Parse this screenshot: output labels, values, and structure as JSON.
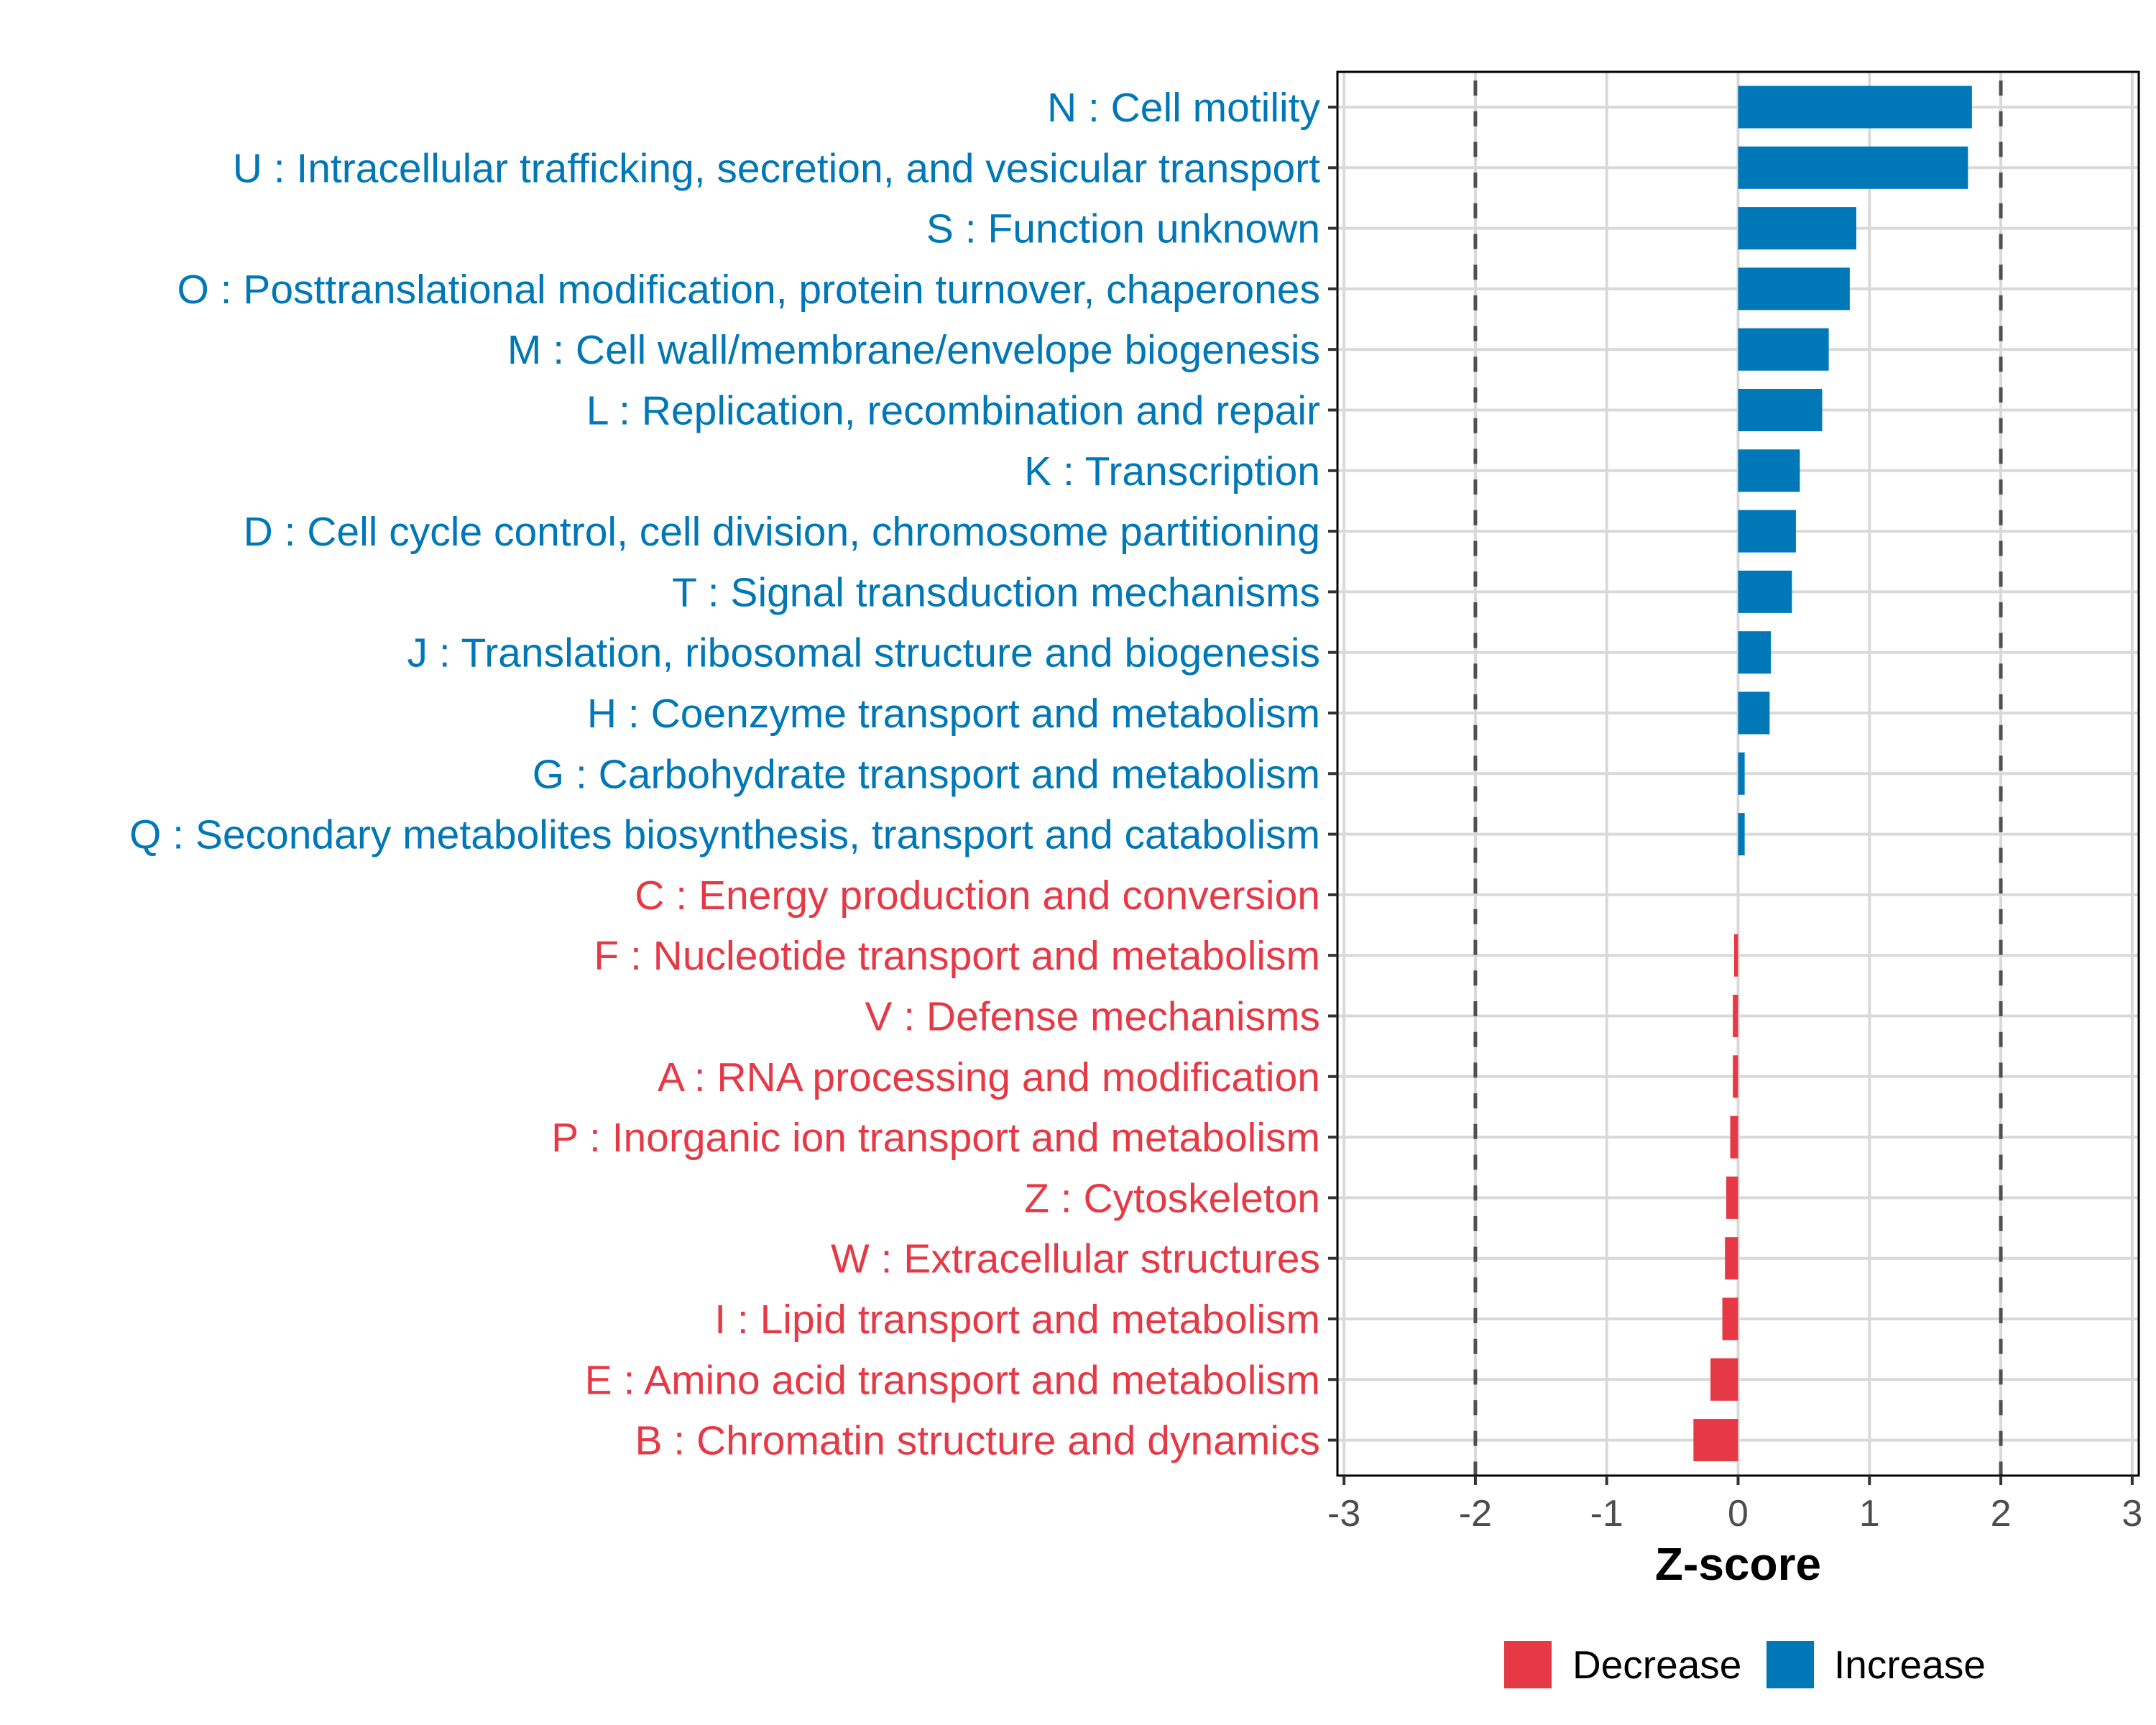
{
  "chart_data": {
    "type": "bar",
    "orientation": "horizontal",
    "title": "",
    "xlabel": "Z-score",
    "ylabel": "",
    "xlim": [
      -3.05,
      3.05
    ],
    "xticks": [
      -3,
      -2,
      -1,
      0,
      1,
      2,
      3
    ],
    "xtick_labels": [
      "-3",
      "-2",
      "-1",
      "0",
      "1",
      "2",
      "3"
    ],
    "grid": true,
    "reference_lines": [
      {
        "x": -2,
        "style": "dashed"
      },
      {
        "x": 2,
        "style": "dashed"
      }
    ],
    "colors": {
      "Increase": "#0077b6",
      "Decrease": "#e63946",
      "grid": "#d9d9d9",
      "reference_line": "#505050",
      "axis": "#000000",
      "tick_text": "#4d4d4d"
    },
    "legend": {
      "position": "bottom",
      "entries": [
        {
          "label": "Decrease",
          "group": "Decrease"
        },
        {
          "label": "Increase",
          "group": "Increase"
        }
      ]
    },
    "categories": [
      "N : Cell motility",
      "U : Intracellular trafficking, secretion, and vesicular transport",
      "S : Function unknown",
      "O : Posttranslational modification, protein turnover, chaperones",
      "M : Cell wall/membrane/envelope biogenesis",
      "L : Replication, recombination and repair",
      "K : Transcription",
      "D : Cell cycle control, cell division, chromosome partitioning",
      "T : Signal transduction mechanisms",
      "J : Translation, ribosomal structure and biogenesis",
      "H : Coenzyme transport and metabolism",
      "G : Carbohydrate transport and metabolism",
      "Q : Secondary metabolites biosynthesis, transport and catabolism",
      "C : Energy production and conversion",
      "F : Nucleotide transport and metabolism",
      "V : Defense mechanisms",
      "A : RNA processing and modification",
      "P : Inorganic ion transport and metabolism",
      "Z : Cytoskeleton",
      "W : Extracellular structures",
      "I : Lipid transport and metabolism",
      "E : Amino acid transport and metabolism",
      "B : Chromatin structure and dynamics"
    ],
    "values": [
      1.78,
      1.75,
      0.9,
      0.85,
      0.69,
      0.64,
      0.47,
      0.44,
      0.41,
      0.25,
      0.24,
      0.05,
      0.05,
      0.0,
      -0.03,
      -0.04,
      -0.04,
      -0.06,
      -0.09,
      -0.1,
      -0.12,
      -0.21,
      -0.34
    ],
    "groups": [
      "Increase",
      "Increase",
      "Increase",
      "Increase",
      "Increase",
      "Increase",
      "Increase",
      "Increase",
      "Increase",
      "Increase",
      "Increase",
      "Increase",
      "Increase",
      "Decrease",
      "Decrease",
      "Decrease",
      "Decrease",
      "Decrease",
      "Decrease",
      "Decrease",
      "Decrease",
      "Decrease",
      "Decrease"
    ]
  }
}
